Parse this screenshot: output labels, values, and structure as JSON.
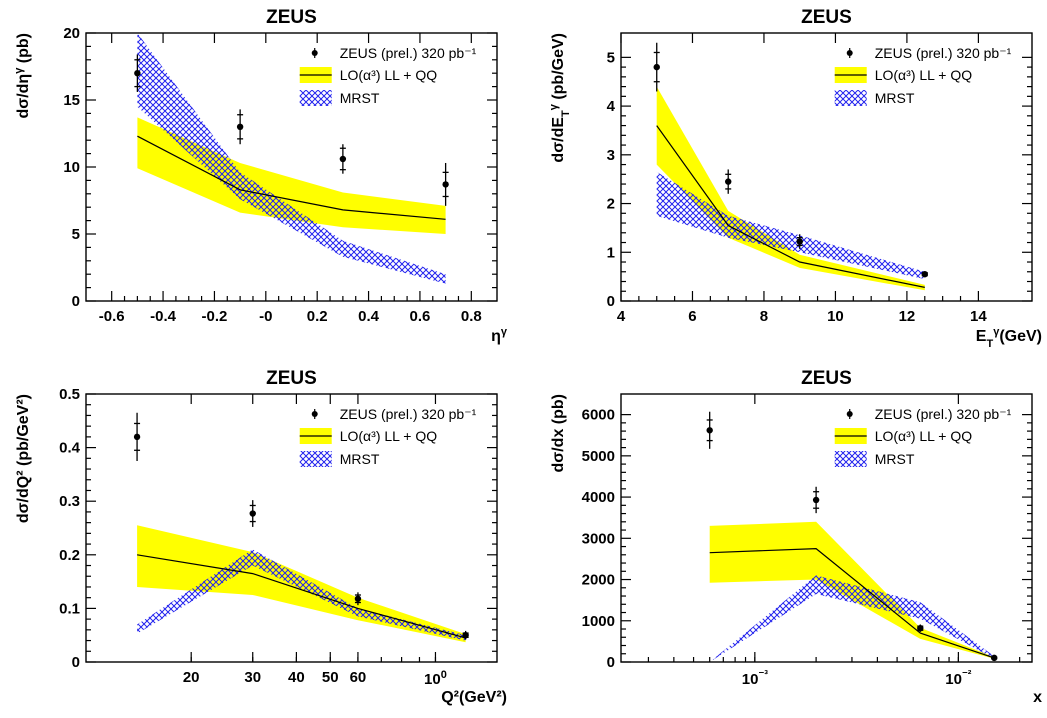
{
  "colors": {
    "band_lo": "#ffff00",
    "band_mrst": "#2222ee",
    "data": "#000000",
    "line": "#000000"
  },
  "chart_data": [
    {
      "type": "line",
      "title": "ZEUS",
      "xlabel": "η^γ",
      "ylabel": "dσ/dη^γ (pb)",
      "xlim": [
        -0.7,
        0.9
      ],
      "ylim": [
        0,
        20
      ],
      "xscale": "linear",
      "xticks": [
        -0.6,
        -0.4,
        -0.2,
        0.0,
        0.2,
        0.4,
        0.6,
        0.8
      ],
      "xtick_labels": [
        "-0.6",
        "-0.4",
        "-0.2",
        "-0",
        "0.2",
        "0.4",
        "0.6",
        "0.8"
      ],
      "yticks": [
        0,
        5,
        10,
        15,
        20
      ],
      "ytick_labels": [
        "0",
        "5",
        "10",
        "15",
        "20"
      ],
      "legend": [
        "ZEUS (prel.) 320 pb⁻¹",
        "LO(α³) LL + QQ",
        "MRST"
      ],
      "legend_placement": "top-right",
      "series": [
        {
          "name": "ZEUS (prel.) 320 pb⁻¹",
          "kind": "points",
          "x": [
            -0.5,
            -0.1,
            0.3,
            0.7
          ],
          "y": [
            17.0,
            13.0,
            10.6,
            8.7
          ],
          "err_stat": [
            1.0,
            0.9,
            0.8,
            0.9
          ],
          "err_tot": [
            1.4,
            1.3,
            1.1,
            1.6
          ]
        },
        {
          "name": "LO(α³) LL + QQ",
          "kind": "band",
          "x": [
            -0.5,
            -0.1,
            0.3,
            0.7
          ],
          "y": [
            12.3,
            8.3,
            6.8,
            6.1
          ],
          "low": [
            9.9,
            6.6,
            5.5,
            5.0
          ],
          "high": [
            13.7,
            10.3,
            8.1,
            7.1
          ]
        },
        {
          "name": "MRST",
          "kind": "band",
          "x": [
            -0.5,
            -0.1,
            0.3,
            0.7
          ],
          "low": [
            14.5,
            7.6,
            3.3,
            1.3
          ],
          "high": [
            20.0,
            9.6,
            4.5,
            2.0
          ]
        }
      ]
    },
    {
      "type": "line",
      "title": "ZEUS",
      "xlabel": "E_T^γ(GeV)",
      "ylabel": "dσ/dE_T^γ (pb/GeV)",
      "xlim": [
        4,
        15.5
      ],
      "ylim": [
        0,
        5.5
      ],
      "xscale": "linear",
      "xticks": [
        4,
        6,
        8,
        10,
        12,
        14
      ],
      "xtick_labels": [
        "4",
        "6",
        "8",
        "10",
        "12",
        "14"
      ],
      "yticks": [
        0,
        1,
        2,
        3,
        4,
        5
      ],
      "ytick_labels": [
        "0",
        "1",
        "2",
        "3",
        "4",
        "5"
      ],
      "legend": [
        "ZEUS (prel.) 320 pb⁻¹",
        "LO(α³) LL + QQ",
        "MRST"
      ],
      "legend_placement": "top-right",
      "series": [
        {
          "name": "ZEUS (prel.) 320 pb⁻¹",
          "kind": "points",
          "x": [
            5,
            7,
            9,
            12.5
          ],
          "y": [
            4.8,
            2.45,
            1.22,
            0.55
          ],
          "err_stat": [
            0.3,
            0.15,
            0.08,
            0.03
          ],
          "err_tot": [
            0.5,
            0.25,
            0.15,
            0.05
          ]
        },
        {
          "name": "LO(α³) LL + QQ",
          "kind": "band",
          "x": [
            5,
            7,
            9,
            12.5
          ],
          "y": [
            3.6,
            1.55,
            0.8,
            0.28
          ],
          "low": [
            2.8,
            1.3,
            0.68,
            0.22
          ],
          "high": [
            4.4,
            1.85,
            0.95,
            0.33
          ]
        },
        {
          "name": "MRST",
          "kind": "band",
          "x": [
            5,
            7,
            9,
            12.5
          ],
          "low": [
            1.75,
            1.3,
            1.0,
            0.45
          ],
          "high": [
            2.65,
            1.75,
            1.35,
            0.6
          ]
        }
      ]
    },
    {
      "type": "line",
      "title": "ZEUS",
      "xlabel": "Q²(GeV²)",
      "ylabel": "dσ/dQ² (pb/GeV²)",
      "xlim": [
        10,
        150
      ],
      "ylim": [
        0,
        0.5
      ],
      "xscale": "log",
      "xticks": [
        20,
        30,
        40,
        50,
        60,
        100
      ],
      "xtick_labels": [
        "20",
        "30",
        "40",
        "50",
        "60",
        "100"
      ],
      "yticks": [
        0,
        0.1,
        0.2,
        0.3,
        0.4,
        0.5
      ],
      "ytick_labels": [
        "0",
        "0.1",
        "0.2",
        "0.3",
        "0.4",
        "0.5"
      ],
      "legend": [
        "ZEUS (prel.) 320 pb⁻¹",
        "LO(α³) LL + QQ",
        "MRST"
      ],
      "legend_placement": "top-right",
      "series": [
        {
          "name": "ZEUS (prel.) 320 pb⁻¹",
          "kind": "points",
          "x": [
            14,
            30,
            60,
            122
          ],
          "y": [
            0.42,
            0.277,
            0.118,
            0.05
          ],
          "err_stat": [
            0.025,
            0.015,
            0.007,
            0.004
          ],
          "err_tot": [
            0.045,
            0.025,
            0.012,
            0.008
          ]
        },
        {
          "name": "LO(α³) LL + QQ",
          "kind": "band",
          "x": [
            14,
            30,
            60,
            122
          ],
          "y": [
            0.2,
            0.165,
            0.1,
            0.045
          ],
          "low": [
            0.14,
            0.125,
            0.078,
            0.037
          ],
          "high": [
            0.255,
            0.205,
            0.12,
            0.052
          ]
        },
        {
          "name": "MRST",
          "kind": "band",
          "x": [
            14,
            30,
            60,
            122
          ],
          "low": [
            0.053,
            0.18,
            0.085,
            0.04
          ],
          "high": [
            0.07,
            0.21,
            0.1,
            0.05
          ]
        }
      ]
    },
    {
      "type": "line",
      "title": "ZEUS",
      "xlabel": "x",
      "ylabel": "dσ/dx (pb)",
      "xlim": [
        0.00022,
        0.023
      ],
      "ylim": [
        0,
        6500
      ],
      "xscale": "log",
      "xticks": [
        0.001,
        0.01
      ],
      "xtick_labels": [
        "10⁻³",
        "10⁻²"
      ],
      "yticks": [
        0,
        1000,
        2000,
        3000,
        4000,
        5000,
        6000
      ],
      "ytick_labels": [
        "0",
        "1000",
        "2000",
        "3000",
        "4000",
        "5000",
        "6000"
      ],
      "legend": [
        "ZEUS (prel.) 320 pb⁻¹",
        "LO(α³) LL + QQ",
        "MRST"
      ],
      "legend_placement": "top-right",
      "series": [
        {
          "name": "ZEUS (prel.) 320 pb⁻¹",
          "kind": "points",
          "x": [
            0.0006,
            0.002,
            0.0065,
            0.015
          ],
          "y": [
            5620,
            3930,
            820,
            100
          ],
          "err_stat": [
            250,
            200,
            50,
            20
          ],
          "err_tot": [
            450,
            320,
            90,
            30
          ]
        },
        {
          "name": "LO(α³) LL + QQ",
          "kind": "band",
          "x": [
            0.0006,
            0.002,
            0.0065,
            0.015
          ],
          "y": [
            2650,
            2750,
            700,
            100
          ],
          "low": [
            1920,
            2000,
            560,
            80
          ],
          "high": [
            3300,
            3400,
            830,
            120
          ]
        },
        {
          "name": "MRST",
          "kind": "band",
          "x": [
            0.0006,
            0.002,
            0.0065,
            0.015
          ],
          "low": [
            0,
            1650,
            1050,
            80
          ],
          "high": [
            0,
            2100,
            1450,
            140
          ]
        }
      ]
    }
  ]
}
